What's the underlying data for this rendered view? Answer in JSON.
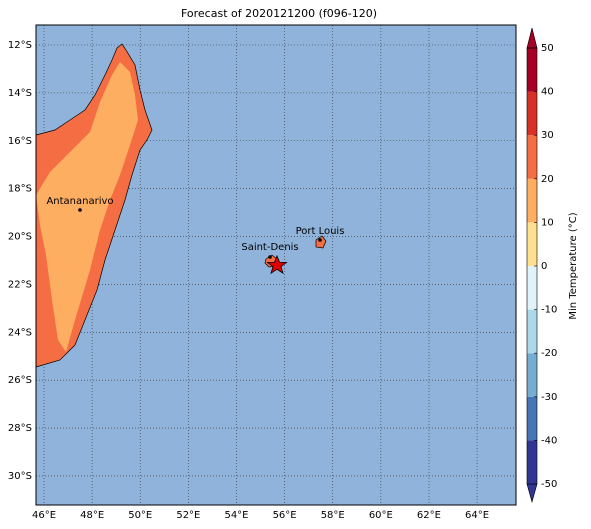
{
  "title": "Forecast of 2020121200 (f096-120)",
  "map": {
    "lon_ticks": [
      {
        "value": 46,
        "label": "46°E"
      },
      {
        "value": 48,
        "label": "48°E"
      },
      {
        "value": 50,
        "label": "50°E"
      },
      {
        "value": 52,
        "label": "52°E"
      },
      {
        "value": 54,
        "label": "54°E"
      },
      {
        "value": 56,
        "label": "56°E"
      },
      {
        "value": 58,
        "label": "58°E"
      },
      {
        "value": 60,
        "label": "60°E"
      },
      {
        "value": 62,
        "label": "62°E"
      },
      {
        "value": 64,
        "label": "64°E"
      }
    ],
    "lat_ticks": [
      {
        "value": -12,
        "label": "12°S"
      },
      {
        "value": -14,
        "label": "14°S"
      },
      {
        "value": -16,
        "label": "16°S"
      },
      {
        "value": -18,
        "label": "18°S"
      },
      {
        "value": -20,
        "label": "20°S"
      },
      {
        "value": -22,
        "label": "22°S"
      },
      {
        "value": -24,
        "label": "24°S"
      },
      {
        "value": -26,
        "label": "26°S"
      },
      {
        "value": -28,
        "label": "28°S"
      },
      {
        "value": -30,
        "label": "30°S"
      }
    ],
    "cities": [
      "Antananarivo",
      "Saint-Denis",
      "Port Louis"
    ]
  },
  "colorbar": {
    "label": "Min Temperature (°C)",
    "ticks": [
      -50,
      -40,
      -30,
      -20,
      -10,
      0,
      10,
      20,
      30,
      40,
      50
    ],
    "colors": [
      "#313695",
      "#4575b4",
      "#74add1",
      "#abd9e9",
      "#e0f3f8",
      "#ffffbf",
      "#fee090",
      "#fdae61",
      "#f46d43",
      "#d73027",
      "#a50026"
    ]
  }
}
